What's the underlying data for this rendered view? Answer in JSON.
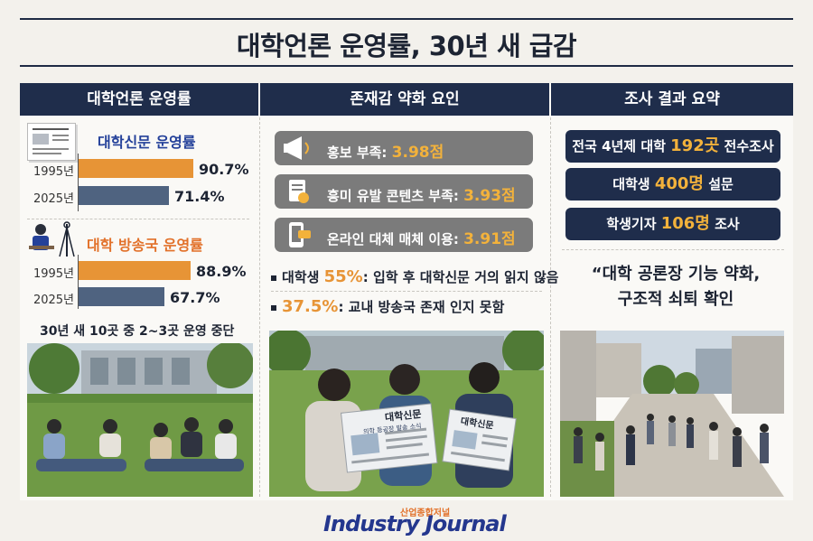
{
  "page": {
    "title": "대학언론 운영률, 30년 새 급감"
  },
  "columns": {
    "col1_header": "대학언론 운영률",
    "col2_header": "존재감 약화 요인",
    "col3_header": "조사 결과 요약"
  },
  "newspaper_chart": {
    "title": "대학신문 운영률",
    "rows": [
      {
        "year": "1995년",
        "value_label": "90.7%",
        "value": 90.7
      },
      {
        "year": "2025년",
        "value_label": "71.4%",
        "value": 71.4
      }
    ]
  },
  "broadcast_chart": {
    "title": "대학 방송국 운영률",
    "rows": [
      {
        "year": "1995년",
        "value_label": "88.9%",
        "value": 88.9
      },
      {
        "year": "2025년",
        "value_label": "67.7%",
        "value": 67.7
      }
    ]
  },
  "col1_note": "30년 새 10곳 중 2~3곳 운영 중단",
  "factors": [
    {
      "label": "홍보 부족: ",
      "score": "3.98점",
      "icon": "megaphone-icon"
    },
    {
      "label": "흥미 유발 콘텐츠 부족: ",
      "score": "3.93점",
      "icon": "document-icon"
    },
    {
      "label": "온라인 대체 매체 이용: ",
      "score": "3.91점",
      "icon": "smartphone-icon"
    }
  ],
  "stats": [
    {
      "prefix": "대학생 ",
      "num": "55%",
      "suffix": ": 입학 후 대학신문 거의 읽지 않음"
    },
    {
      "prefix": "",
      "num": "37.5%",
      "suffix": ": 교내 방송국 존재 인지 못함"
    }
  ],
  "summary": [
    {
      "pre": "전국 4년제 대학 ",
      "num": "192곳",
      "post": " 전수조사"
    },
    {
      "pre": "대학생 ",
      "num": "400명",
      "post": " 설문"
    },
    {
      "pre": "학생기자 ",
      "num": "106명",
      "post": " 조사"
    }
  ],
  "quote": {
    "line1": "“대학 공론장 기능 약화,",
    "line2": "구조적 쇠퇴 확인"
  },
  "photo_text": {
    "paper_left_title": "대학신문",
    "paper_left_sub": "의학 등공장 발송 소식",
    "paper_right_title": "대학신문"
  },
  "footer": {
    "logo_korean": "산업종합저널",
    "logo_english": "Industry Journal"
  },
  "colors": {
    "navy": "#1f2d4b",
    "orange": "#e79436",
    "steel": "#4f6380",
    "gold": "#f3b23b"
  }
}
